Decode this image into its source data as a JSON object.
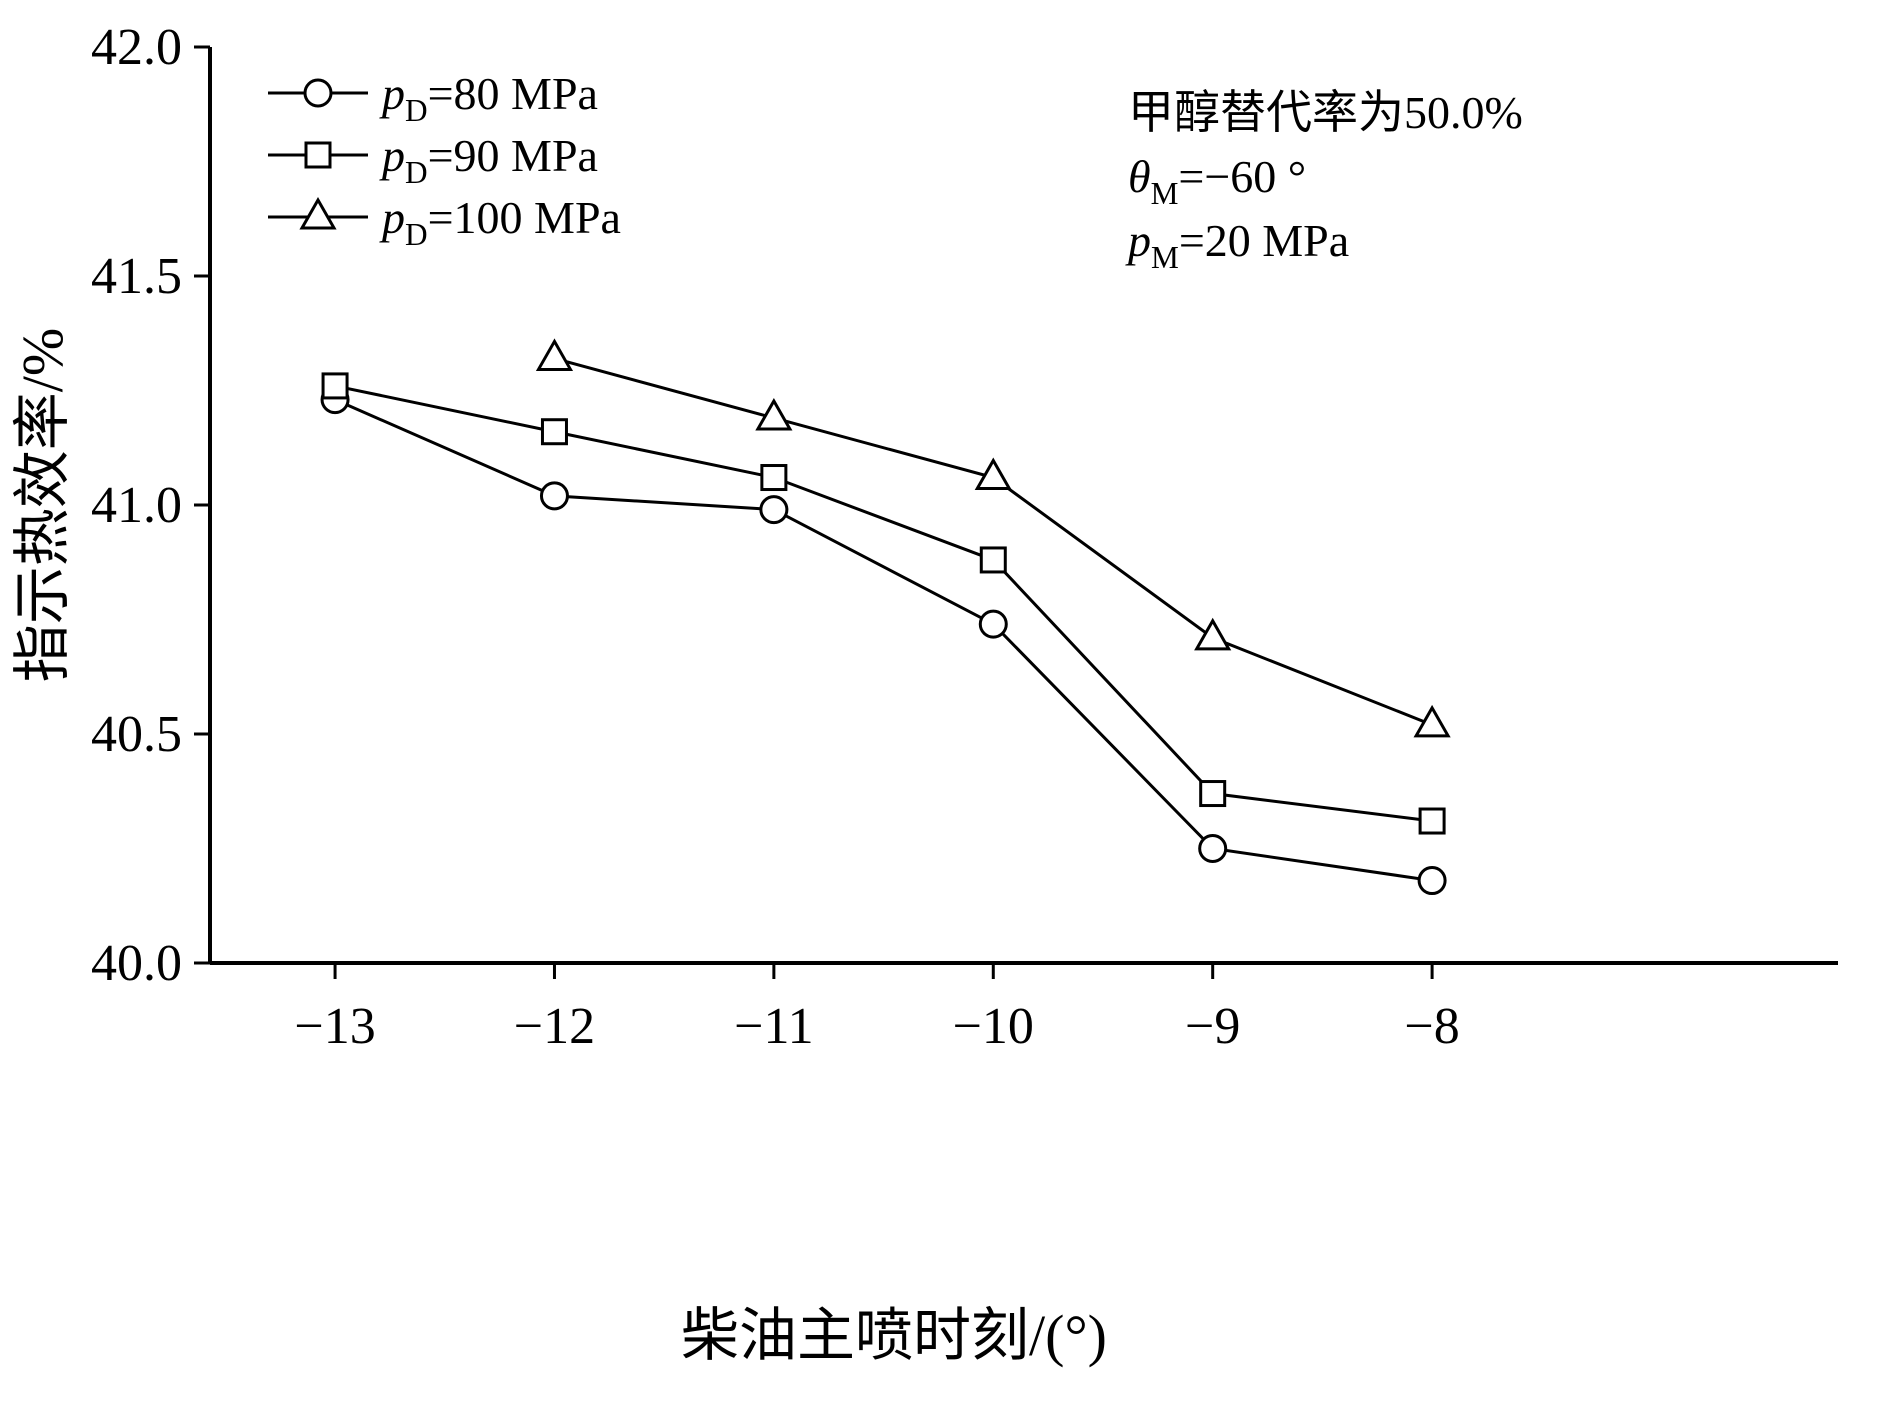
{
  "chart_data": {
    "type": "line",
    "title": "",
    "xlabel": "柴油主喷时刻/(°)",
    "ylabel": "指示热效率/%",
    "xlim": [
      -13.57,
      -6.15
    ],
    "ylim": [
      40.0,
      42.0
    ],
    "grid": false,
    "legend_position": "top-left-inside",
    "x_ticks": [
      -13,
      -12,
      -11,
      -10,
      -9,
      -8
    ],
    "x_tick_labels": [
      "−13",
      "−12",
      "−11",
      "−10",
      "−9",
      "−8"
    ],
    "y_ticks": [
      40.0,
      40.5,
      41.0,
      41.5,
      42.0
    ],
    "y_tick_labels": [
      "40.0",
      "40.5",
      "41.0",
      "41.5",
      "42.0"
    ],
    "series": [
      {
        "name": "pD=80 MPa",
        "marker": "circle",
        "label_parts": [
          {
            "t": "p",
            "i": true
          },
          {
            "t": "D",
            "sub": true
          },
          {
            "t": "=80 MPa"
          }
        ],
        "x": [
          -13,
          -12,
          -11,
          -10,
          -9,
          -8
        ],
        "y": [
          41.23,
          41.02,
          40.99,
          40.74,
          40.25,
          40.18
        ]
      },
      {
        "name": "pD=90 MPa",
        "marker": "square",
        "label_parts": [
          {
            "t": "p",
            "i": true
          },
          {
            "t": "D",
            "sub": true
          },
          {
            "t": "=90 MPa"
          }
        ],
        "x": [
          -13,
          -12,
          -11,
          -10,
          -9,
          -8
        ],
        "y": [
          41.26,
          41.16,
          41.06,
          40.88,
          40.37,
          40.31
        ]
      },
      {
        "name": "pD=100 MPa",
        "marker": "triangle",
        "label_parts": [
          {
            "t": "p",
            "i": true
          },
          {
            "t": "D",
            "sub": true
          },
          {
            "t": "=100 MPa"
          }
        ],
        "x": [
          -12,
          -11,
          -10,
          -9,
          -8
        ],
        "y": [
          41.32,
          41.19,
          41.06,
          40.71,
          40.52
        ]
      }
    ],
    "annotations": [
      {
        "name": "methanol-substitution-rate",
        "parts": [
          {
            "t": "甲醇替代率为50.0%"
          }
        ]
      },
      {
        "name": "theta-m",
        "parts": [
          {
            "t": "θ",
            "i": true
          },
          {
            "t": "M",
            "sub": true
          },
          {
            "t": "=−60 °"
          }
        ]
      },
      {
        "name": "p-m",
        "parts": [
          {
            "t": "p",
            "i": true
          },
          {
            "t": "M",
            "sub": true
          },
          {
            "t": "=20 MPa"
          }
        ]
      }
    ],
    "colors": {
      "line": "#000000",
      "marker_fill": "#ffffff",
      "axis": "#000000"
    }
  }
}
